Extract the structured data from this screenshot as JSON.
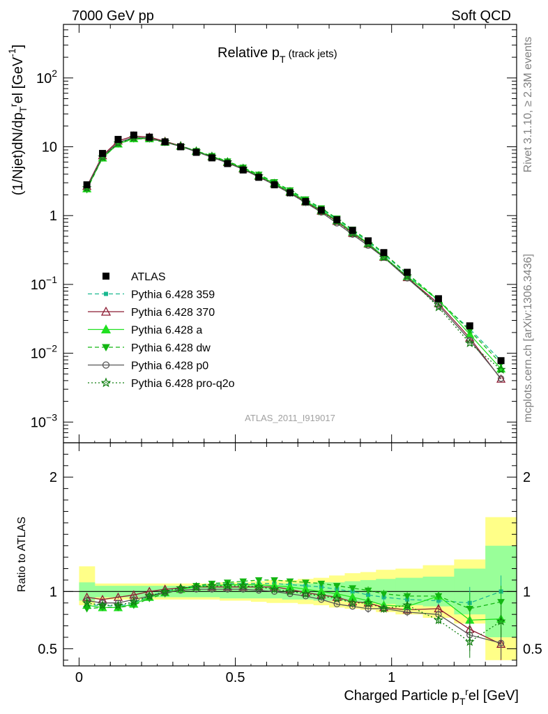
{
  "header": {
    "left": "7000 GeV pp",
    "right": "Soft QCD"
  },
  "side_labels": {
    "rivet": "Rivet 3.1.10, ≥ 2.3M events",
    "mcplots": "mcplots.cern.ch [arXiv:1306.3436]"
  },
  "chart_data": {
    "type": "line",
    "title": "Relative p_T (track jets)",
    "analysis_tag": "ATLAS_2011_I919017",
    "xlabel": "Charged Particle p_T^rel [GeV]",
    "ylabel": "(1/Njet)dN/dp_T^rel [GeV^-1]",
    "ratio_ylabel": "Ratio to ATLAS",
    "xlim": [
      -0.05,
      1.4
    ],
    "ylim": [
      0.0005,
      600
    ],
    "ratio_ylim": [
      0.35,
      2.3
    ],
    "yscale": "log",
    "x_ticks": [
      "0",
      "0.5",
      "1"
    ],
    "y_ticks": [
      "10^-3",
      "10^-2",
      "10^-1",
      "1",
      "10",
      "10^2"
    ],
    "ratio_ticks": [
      "0.5",
      "1",
      "2"
    ],
    "legend_position": "middle-left",
    "x": [
      0.025,
      0.075,
      0.125,
      0.175,
      0.225,
      0.275,
      0.325,
      0.375,
      0.425,
      0.475,
      0.525,
      0.575,
      0.625,
      0.675,
      0.725,
      0.775,
      0.825,
      0.875,
      0.925,
      0.975,
      1.05,
      1.15,
      1.25,
      1.35
    ],
    "data": {
      "name": "ATLAS",
      "values": [
        2.8,
        8.0,
        12.8,
        14.8,
        13.8,
        11.8,
        10.0,
        8.3,
        6.9,
        5.7,
        4.6,
        3.6,
        2.8,
        2.15,
        1.6,
        1.2,
        0.87,
        0.61,
        0.43,
        0.29,
        0.15,
        0.062,
        0.025,
        0.0078
      ]
    },
    "series": [
      {
        "name": "Pythia 6.428 359",
        "color": "#1ab88f",
        "style": "dashed",
        "marker": "square-small",
        "ratio": [
          0.88,
          0.88,
          0.87,
          0.9,
          0.96,
          1.0,
          1.03,
          1.05,
          1.06,
          1.07,
          1.07,
          1.07,
          1.07,
          1.06,
          1.05,
          1.04,
          1.02,
          1.0,
          0.97,
          0.95,
          0.93,
          0.92,
          0.9,
          1.0
        ]
      },
      {
        "name": "Pythia 6.428 370",
        "color": "#8b1a32",
        "style": "solid",
        "marker": "triangle-open",
        "ratio": [
          0.95,
          0.93,
          0.95,
          0.97,
          1.0,
          1.02,
          1.03,
          1.04,
          1.04,
          1.04,
          1.04,
          1.04,
          1.04,
          1.02,
          0.99,
          0.97,
          0.95,
          0.91,
          0.9,
          0.86,
          0.84,
          0.85,
          0.67,
          0.54
        ]
      },
      {
        "name": "Pythia 6.428 a",
        "color": "#20e020",
        "style": "solid",
        "marker": "triangle-filled",
        "ratio": [
          0.88,
          0.86,
          0.86,
          0.89,
          0.95,
          0.99,
          1.02,
          1.04,
          1.05,
          1.06,
          1.06,
          1.06,
          1.05,
          1.04,
          1.02,
          1.0,
          0.98,
          0.95,
          0.92,
          0.88,
          0.87,
          0.96,
          0.75,
          0.76
        ]
      },
      {
        "name": "Pythia 6.428 dw",
        "color": "#13b613",
        "style": "dashed",
        "marker": "triangle-down-filled",
        "ratio": [
          0.85,
          0.86,
          0.86,
          0.88,
          0.94,
          0.98,
          1.02,
          1.05,
          1.07,
          1.08,
          1.09,
          1.1,
          1.1,
          1.09,
          1.08,
          1.07,
          1.05,
          1.03,
          1.01,
          0.98,
          0.96,
          0.96,
          0.85,
          0.91
        ]
      },
      {
        "name": "Pythia 6.428 p0",
        "color": "#555555",
        "style": "solid",
        "marker": "circle-open",
        "ratio": [
          0.92,
          0.9,
          0.9,
          0.93,
          0.96,
          0.99,
          1.01,
          1.02,
          1.02,
          1.02,
          1.02,
          1.01,
          1.0,
          0.98,
          0.96,
          0.93,
          0.89,
          0.87,
          0.85,
          0.85,
          0.82,
          0.8,
          0.62,
          0.55
        ]
      },
      {
        "name": "Pythia 6.428 pro-q2o",
        "color": "#0d7d0d",
        "style": "dotted",
        "marker": "star-open",
        "ratio": [
          0.9,
          0.88,
          0.88,
          0.91,
          0.96,
          1.0,
          1.03,
          1.04,
          1.05,
          1.05,
          1.05,
          1.04,
          1.02,
          1.0,
          0.98,
          0.96,
          0.94,
          0.9,
          0.9,
          0.85,
          0.88,
          0.75,
          0.56,
          0.74
        ]
      }
    ],
    "uncertainty_bands": {
      "stat_color": "#99ff99",
      "syst_color": "#ffff88",
      "inner": [
        [
          0.92,
          1.08
        ],
        [
          0.95,
          1.05
        ],
        [
          0.95,
          1.05
        ],
        [
          0.95,
          1.05
        ],
        [
          0.95,
          1.05
        ],
        [
          0.95,
          1.05
        ],
        [
          0.95,
          1.05
        ],
        [
          0.95,
          1.05
        ],
        [
          0.95,
          1.05
        ],
        [
          0.94,
          1.06
        ],
        [
          0.94,
          1.06
        ],
        [
          0.94,
          1.06
        ],
        [
          0.94,
          1.06
        ],
        [
          0.93,
          1.07
        ],
        [
          0.93,
          1.07
        ],
        [
          0.92,
          1.08
        ],
        [
          0.92,
          1.08
        ],
        [
          0.91,
          1.09
        ],
        [
          0.9,
          1.1
        ],
        [
          0.89,
          1.11
        ],
        [
          0.88,
          1.12
        ],
        [
          0.87,
          1.13
        ],
        [
          0.8,
          1.2
        ],
        [
          0.6,
          1.4
        ]
      ],
      "outer": [
        [
          0.88,
          1.22
        ],
        [
          0.93,
          1.07
        ],
        [
          0.93,
          1.07
        ],
        [
          0.93,
          1.07
        ],
        [
          0.93,
          1.07
        ],
        [
          0.93,
          1.07
        ],
        [
          0.93,
          1.07
        ],
        [
          0.93,
          1.07
        ],
        [
          0.93,
          1.07
        ],
        [
          0.92,
          1.08
        ],
        [
          0.92,
          1.08
        ],
        [
          0.91,
          1.09
        ],
        [
          0.9,
          1.1
        ],
        [
          0.9,
          1.1
        ],
        [
          0.89,
          1.11
        ],
        [
          0.88,
          1.12
        ],
        [
          0.86,
          1.14
        ],
        [
          0.85,
          1.16
        ],
        [
          0.84,
          1.17
        ],
        [
          0.82,
          1.19
        ],
        [
          0.8,
          1.2
        ],
        [
          0.77,
          1.23
        ],
        [
          0.72,
          1.28
        ],
        [
          0.4,
          1.65
        ]
      ]
    }
  }
}
